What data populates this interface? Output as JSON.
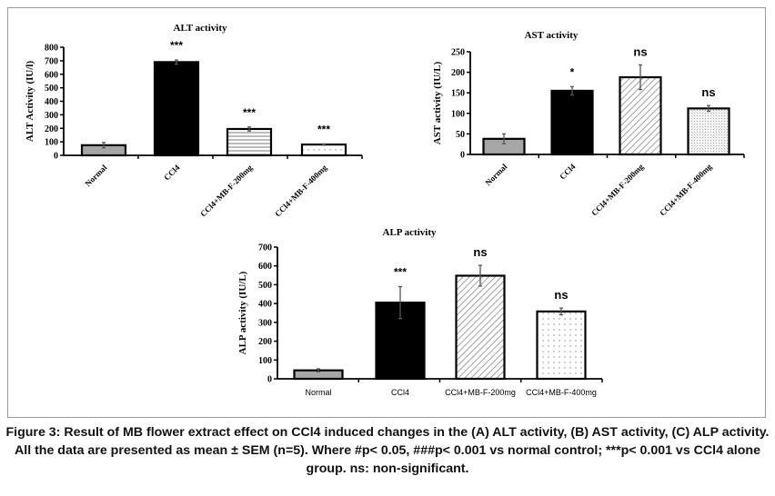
{
  "chart_data": [
    {
      "type": "bar",
      "title": "ALT activity",
      "ylabel": "ALT Activity (IU/l)",
      "xlabel": "",
      "categories": [
        "Normal",
        "CCl4",
        "CCl4+MB-F-200mg",
        "CCl4+MB-F-400mg"
      ],
      "values": [
        75,
        690,
        195,
        80
      ],
      "errors": [
        20,
        15,
        15,
        5
      ],
      "annotations": [
        "",
        "***",
        "***",
        "***"
      ],
      "ylim": [
        0,
        800
      ],
      "yticks": [
        0,
        100,
        200,
        300,
        400,
        500,
        600,
        700,
        800
      ],
      "fills": [
        "gray",
        "black",
        "hstripes",
        "dots"
      ],
      "rotated_labels": true,
      "grid": false
    },
    {
      "type": "bar",
      "title": "AST activity",
      "ylabel": "AST activity (IU/L)",
      "xlabel": "",
      "categories": [
        "Normal",
        "CCl4",
        "CCl4+MB-F-200mg",
        "CCl4+MB-F-400mg"
      ],
      "values": [
        38,
        155,
        188,
        112
      ],
      "errors": [
        12,
        10,
        30,
        7
      ],
      "annotations": [
        "",
        "*",
        "ns",
        "ns"
      ],
      "ylim": [
        0,
        250
      ],
      "yticks": [
        0,
        50,
        100,
        150,
        200,
        250
      ],
      "fills": [
        "gray",
        "black",
        "diag",
        "finedots"
      ],
      "rotated_labels": true,
      "grid": false
    },
    {
      "type": "bar",
      "title": "ALP activity",
      "ylabel": "ALP activity (IU/L)",
      "xlabel": "",
      "categories": [
        "Normal",
        "CCl4",
        "CCl4+MB-F-200mg",
        "CCl4+MB-F-400mg"
      ],
      "values": [
        45,
        405,
        548,
        358
      ],
      "errors": [
        8,
        85,
        55,
        18
      ],
      "annotations": [
        "",
        "***",
        "ns",
        "ns"
      ],
      "ylim": [
        0,
        700
      ],
      "yticks": [
        0,
        100,
        200,
        300,
        400,
        500,
        600,
        700
      ],
      "fills": [
        "gray",
        "black",
        "diag",
        "dots"
      ],
      "rotated_labels": false,
      "grid": false
    }
  ],
  "caption": "Figure 3: Result of MB flower extract effect on CCl4 induced changes in the (A) ALT activity, (B) AST activity, (C) ALP activity. All the data are presented as mean ± SEM (n=5). Where #p< 0.05, ###p< 0.001 vs normal control; ***p< 0.001 vs CCl4 alone group. ns: non-significant."
}
